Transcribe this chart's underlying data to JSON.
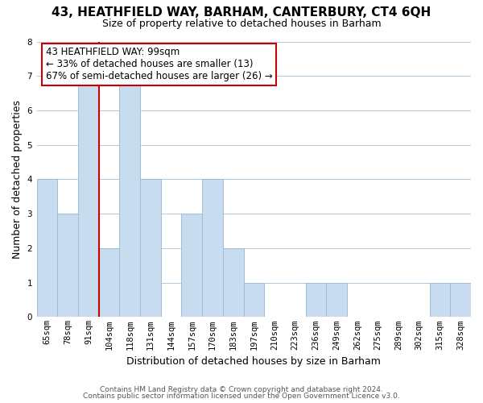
{
  "title": "43, HEATHFIELD WAY, BARHAM, CANTERBURY, CT4 6QH",
  "subtitle": "Size of property relative to detached houses in Barham",
  "xlabel": "Distribution of detached houses by size in Barham",
  "ylabel": "Number of detached properties",
  "categories": [
    "65sqm",
    "78sqm",
    "91sqm",
    "104sqm",
    "118sqm",
    "131sqm",
    "144sqm",
    "157sqm",
    "170sqm",
    "183sqm",
    "197sqm",
    "210sqm",
    "223sqm",
    "236sqm",
    "249sqm",
    "262sqm",
    "275sqm",
    "289sqm",
    "302sqm",
    "315sqm",
    "328sqm"
  ],
  "values": [
    4,
    3,
    7,
    2,
    7,
    4,
    0,
    3,
    4,
    2,
    1,
    0,
    0,
    1,
    1,
    0,
    0,
    0,
    0,
    1,
    1
  ],
  "bar_color": "#c8dcf0",
  "bar_edge_color": "#a0bcd8",
  "subject_line_color": "#cc0000",
  "annotation_box_text": "43 HEATHFIELD WAY: 99sqm\n← 33% of detached houses are smaller (13)\n67% of semi-detached houses are larger (26) →",
  "ylim": [
    0,
    8
  ],
  "yticks": [
    0,
    1,
    2,
    3,
    4,
    5,
    6,
    7,
    8
  ],
  "footer_line1": "Contains HM Land Registry data © Crown copyright and database right 2024.",
  "footer_line2": "Contains public sector information licensed under the Open Government Licence v3.0.",
  "bg_color": "#ffffff",
  "grid_color": "#b0c8e0",
  "title_fontsize": 11,
  "subtitle_fontsize": 9,
  "tick_fontsize": 7.5,
  "ylabel_fontsize": 9,
  "xlabel_fontsize": 9,
  "footer_fontsize": 6.5
}
